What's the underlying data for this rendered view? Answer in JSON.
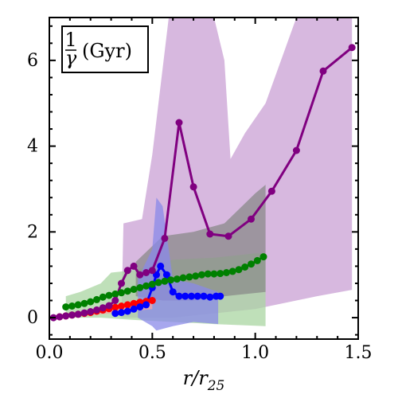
{
  "chart_data": {
    "type": "line",
    "xlabel": "r/r25",
    "xlabel_main": "r/r",
    "xlabel_sub": "25",
    "ylabel": "",
    "legend": {
      "numerator": "1",
      "denominator": "γ",
      "unit": "(Gyr)",
      "placement": "top-left"
    },
    "xlim": [
      0.0,
      1.5
    ],
    "ylim": [
      -0.5,
      7.0
    ],
    "xticks": [
      0.0,
      0.5,
      1.0,
      1.5
    ],
    "xtick_labels": [
      "0.0",
      "0.5",
      "1.0",
      "1.5"
    ],
    "yticks": [
      0,
      2,
      4,
      6
    ],
    "ytick_labels": [
      "0",
      "2",
      "4",
      "6"
    ],
    "grid": false,
    "bands": [
      {
        "color": "#c9a0d4",
        "upper": [
          [
            0.35,
            0.0
          ],
          [
            0.36,
            2.2
          ],
          [
            0.45,
            2.3
          ],
          [
            0.5,
            3.8
          ],
          [
            0.58,
            7.0
          ],
          [
            0.8,
            7.0
          ],
          [
            0.85,
            6.0
          ],
          [
            0.88,
            3.7
          ],
          [
            0.95,
            4.3
          ],
          [
            1.05,
            5.0
          ],
          [
            1.2,
            7.0
          ],
          [
            1.47,
            7.0
          ]
        ],
        "lower": [
          [
            1.47,
            0.65
          ],
          [
            1.3,
            0.5
          ],
          [
            1.1,
            0.3
          ],
          [
            1.0,
            0.2
          ],
          [
            0.8,
            0.1
          ],
          [
            0.6,
            0.0
          ],
          [
            0.45,
            0.0
          ],
          [
            0.35,
            0.0
          ]
        ]
      },
      {
        "color": "#a9d5a2",
        "upper": [
          [
            0.08,
            0.5
          ],
          [
            0.15,
            0.6
          ],
          [
            0.25,
            0.8
          ],
          [
            0.3,
            1.05
          ],
          [
            0.4,
            1.1
          ],
          [
            0.5,
            1.2
          ],
          [
            0.6,
            1.35
          ],
          [
            0.8,
            1.4
          ],
          [
            1.0,
            1.5
          ],
          [
            1.05,
            1.5
          ]
        ],
        "lower": [
          [
            1.05,
            -0.2
          ],
          [
            0.8,
            -0.15
          ],
          [
            0.6,
            -0.1
          ],
          [
            0.4,
            -0.05
          ],
          [
            0.25,
            0.0
          ],
          [
            0.08,
            0.0
          ]
        ]
      },
      {
        "color": "#8a8a8a",
        "upper": [
          [
            0.42,
            1.3
          ],
          [
            0.55,
            1.9
          ],
          [
            0.7,
            2.0
          ],
          [
            0.85,
            2.2
          ],
          [
            1.0,
            2.9
          ],
          [
            1.05,
            3.1
          ]
        ],
        "lower": [
          [
            1.05,
            0.6
          ],
          [
            0.85,
            0.5
          ],
          [
            0.7,
            0.4
          ],
          [
            0.55,
            0.4
          ],
          [
            0.42,
            0.5
          ]
        ]
      },
      {
        "color": "#8a8ae8",
        "upper": [
          [
            0.43,
            0.9
          ],
          [
            0.5,
            1.6
          ],
          [
            0.52,
            2.8
          ],
          [
            0.55,
            2.6
          ],
          [
            0.6,
            0.9
          ],
          [
            0.7,
            0.8
          ],
          [
            0.82,
            0.6
          ]
        ],
        "lower": [
          [
            0.82,
            -0.15
          ],
          [
            0.7,
            -0.1
          ],
          [
            0.6,
            -0.2
          ],
          [
            0.52,
            -0.3
          ],
          [
            0.5,
            -0.2
          ],
          [
            0.43,
            0.0
          ]
        ]
      },
      {
        "color": "#f2a6a6",
        "upper": [
          [
            0.05,
            0.05
          ],
          [
            0.3,
            0.25
          ],
          [
            0.5,
            0.45
          ]
        ],
        "lower": [
          [
            0.5,
            0.2
          ],
          [
            0.3,
            0.1
          ],
          [
            0.05,
            0.0
          ]
        ]
      }
    ],
    "series": [
      {
        "color": "#ff0000",
        "x": [
          0.05,
          0.08,
          0.11,
          0.14,
          0.17,
          0.2,
          0.23,
          0.26,
          0.29,
          0.32,
          0.35,
          0.38,
          0.41,
          0.44,
          0.47,
          0.5
        ],
        "y": [
          0.02,
          0.04,
          0.06,
          0.08,
          0.1,
          0.12,
          0.15,
          0.18,
          0.21,
          0.24,
          0.27,
          0.3,
          0.33,
          0.36,
          0.38,
          0.4
        ]
      },
      {
        "color": "#0000ff",
        "x": [
          0.32,
          0.35,
          0.38,
          0.41,
          0.44,
          0.47,
          0.5,
          0.52,
          0.54,
          0.57,
          0.6,
          0.63,
          0.66,
          0.69,
          0.72,
          0.75,
          0.78,
          0.81,
          0.83
        ],
        "y": [
          0.1,
          0.12,
          0.15,
          0.2,
          0.25,
          0.3,
          0.7,
          1.0,
          1.2,
          1.0,
          0.6,
          0.5,
          0.5,
          0.5,
          0.5,
          0.5,
          0.48,
          0.5,
          0.5
        ]
      },
      {
        "color": "#008000",
        "x": [
          0.08,
          0.11,
          0.14,
          0.17,
          0.2,
          0.23,
          0.26,
          0.29,
          0.32,
          0.35,
          0.38,
          0.41,
          0.44,
          0.47,
          0.5,
          0.53,
          0.56,
          0.59,
          0.62,
          0.65,
          0.68,
          0.71,
          0.74,
          0.77,
          0.8,
          0.83,
          0.86,
          0.89,
          0.92,
          0.95,
          0.98,
          1.01,
          1.04
        ],
        "y": [
          0.25,
          0.27,
          0.3,
          0.33,
          0.37,
          0.42,
          0.48,
          0.52,
          0.55,
          0.58,
          0.62,
          0.66,
          0.7,
          0.74,
          0.78,
          0.82,
          0.85,
          0.88,
          0.9,
          0.93,
          0.95,
          0.97,
          1.0,
          1.02,
          1.02,
          1.03,
          1.05,
          1.08,
          1.12,
          1.18,
          1.25,
          1.33,
          1.42
        ]
      },
      {
        "color": "#800080",
        "x": [
          0.02,
          0.05,
          0.08,
          0.11,
          0.14,
          0.17,
          0.2,
          0.23,
          0.26,
          0.29,
          0.32,
          0.35,
          0.38,
          0.41,
          0.44,
          0.47,
          0.5,
          0.56,
          0.63,
          0.7,
          0.78,
          0.87,
          0.98,
          1.08,
          1.2,
          1.33,
          1.47
        ],
        "y": [
          0.0,
          0.02,
          0.04,
          0.06,
          0.08,
          0.11,
          0.14,
          0.18,
          0.23,
          0.28,
          0.4,
          0.8,
          1.1,
          1.2,
          1.0,
          1.05,
          1.1,
          1.85,
          4.55,
          3.05,
          1.95,
          1.9,
          2.3,
          2.95,
          3.9,
          5.75,
          6.3
        ]
      }
    ]
  }
}
